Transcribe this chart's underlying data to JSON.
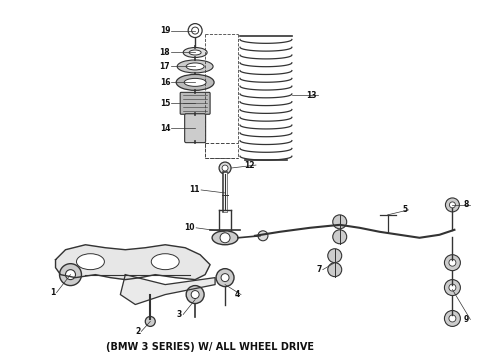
{
  "bg_color": "#ffffff",
  "line_color": "#444444",
  "dark_color": "#333333",
  "fill_color": "#cccccc",
  "caption": "(BMW 3 SERIES) W/ ALL WHEEL DRIVE",
  "caption_fontsize": 7.0,
  "fig_width": 4.9,
  "fig_height": 3.6,
  "dpi": 100,
  "label_fontsize": 5.5
}
